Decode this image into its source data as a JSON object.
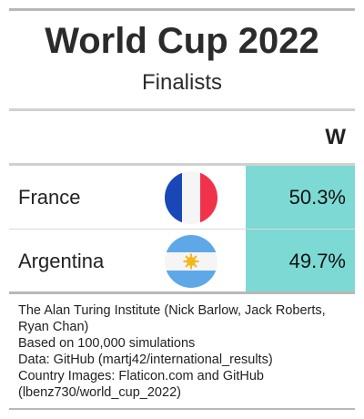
{
  "title": "World Cup 2022",
  "subtitle": "Finalists",
  "column_header": "W",
  "rows": [
    {
      "team": "France",
      "flag_icon": "france-flag-icon",
      "win_pct": "50.3%"
    },
    {
      "team": "Argentina",
      "flag_icon": "argentina-flag-icon",
      "win_pct": "49.7%"
    }
  ],
  "footer": [
    "The Alan Turing Institute (Nick Barlow, Jack Roberts, Ryan Chan)",
    "Based on 100,000 simulations",
    "Data: GitHub (martj42/international_results)",
    "Country Images: Flaticon.com and GitHub (lbenz730/world_cup_2022)"
  ],
  "colors": {
    "highlight": "#7dd9d4",
    "france_blue": "#1a47b8",
    "france_red": "#f0334a",
    "argentina_blue": "#5fa8e8",
    "argentina_sun": "#f5b81c"
  }
}
